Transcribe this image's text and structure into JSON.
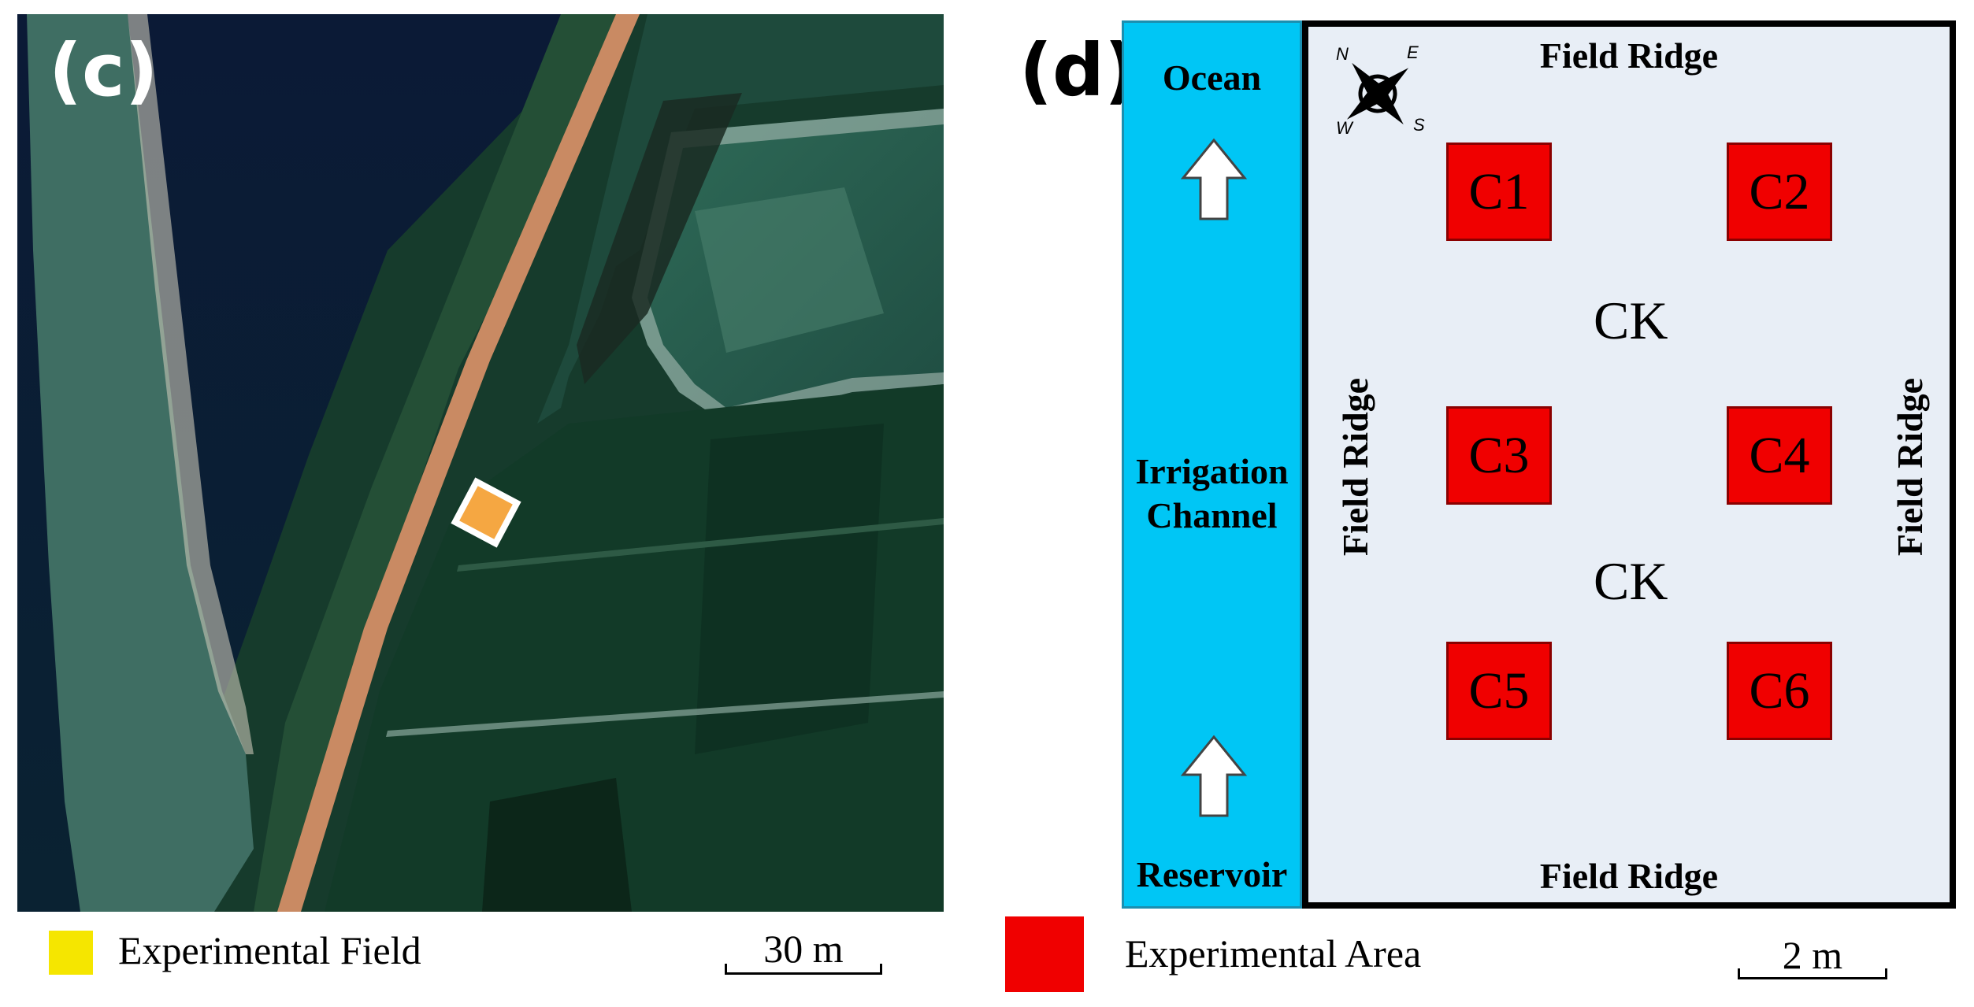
{
  "panel_c": {
    "letter": "(c)",
    "legend_label": "Experimental Field",
    "legend_color": "#f5e600",
    "marker_color": "#f5a742",
    "scale_label": "30 m"
  },
  "panel_d": {
    "letter": "(d)",
    "ocean": "Ocean",
    "channel": [
      "Irrigation",
      "Channel"
    ],
    "reservoir": "Reservoir",
    "ridge_top": "Field Ridge",
    "ridge_bottom": "Field Ridge",
    "ridge_left": "Field Ridge",
    "ridge_right": "Field Ridge",
    "compass": [
      "N",
      "E",
      "S",
      "W"
    ],
    "control": [
      "CK",
      "CK"
    ],
    "plots": [
      "C1",
      "C2",
      "C3",
      "C4",
      "C5",
      "C6"
    ],
    "plot_color": "#f00000",
    "channel_color": "#00c6f5",
    "legend_label": "Experimental Area",
    "scale_label": "2 m"
  }
}
